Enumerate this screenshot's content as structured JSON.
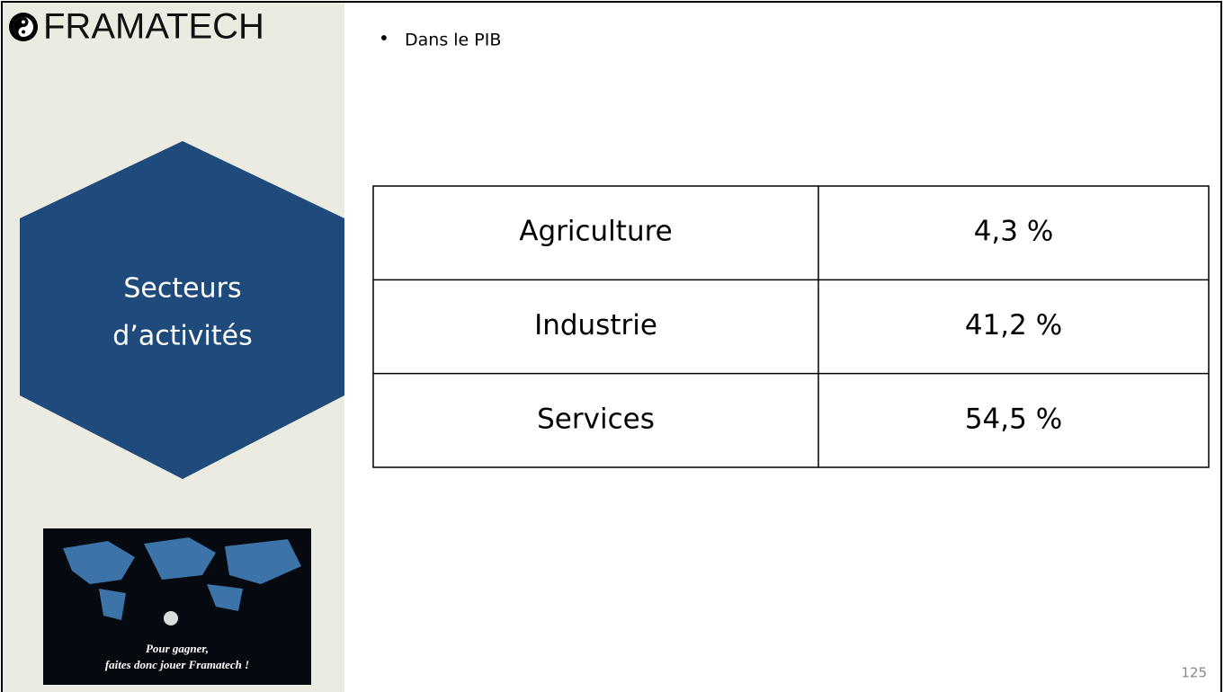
{
  "header": {
    "logo": "FRAMATECH"
  },
  "sidebar": {
    "title_lines": [
      "Secteurs",
      "d’activités"
    ],
    "caption_lines": [
      "Pour gagner,",
      "faites donc jouer Framatech !"
    ]
  },
  "content": {
    "bullet": "Dans le PIB",
    "table": {
      "rows": [
        [
          "Agriculture",
          "4,3 %"
        ],
        [
          "Industrie",
          "41,2 %"
        ],
        [
          "Services",
          "54,5 %"
        ]
      ]
    }
  },
  "page_number": "125"
}
